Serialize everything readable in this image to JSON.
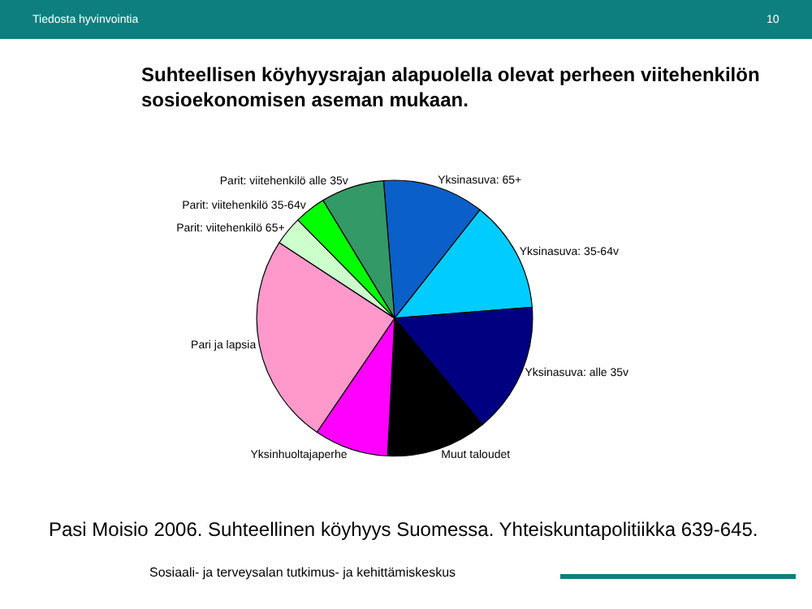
{
  "chart_data": {
    "type": "pie",
    "title": "Suhteellisen köyhyysrajan alapuolella olevat perheen viitehenkilön\nsosioekonomisen aseman mukaan.",
    "categories": [
      "Yksinasuva: 65+",
      "Yksinasuva: 35-64v",
      "Yksinasuva: alle 35v",
      "Muut taloudet",
      "Yksinhuoltajaperhe",
      "Pari ja lapsia",
      "Parit: viitehenkilö 65+",
      "Parit: viitehenkilö 35-64v",
      "Parit: viitehenkilö alle 35v"
    ],
    "values": [
      11.9,
      13.1,
      15.3,
      11.8,
      8.7,
      24.7,
      3.4,
      3.7,
      7.4
    ],
    "colors": [
      "#0a5fc8",
      "#00ccff",
      "#000080",
      "#000000",
      "#ff00ff",
      "#ff99cc",
      "#ccffcc",
      "#00ff00",
      "#339966"
    ],
    "legend": false,
    "annotations": [
      "Tiedosta hyvinvointia",
      "10",
      "Pasi Moisio 2006. Suhteellinen köyhyys Suomessa. Yhteiskuntapolitiikka 639-645.",
      "Sosiaali- ja terveysalan tutkimus- ja kehittämiskeskus"
    ]
  }
}
